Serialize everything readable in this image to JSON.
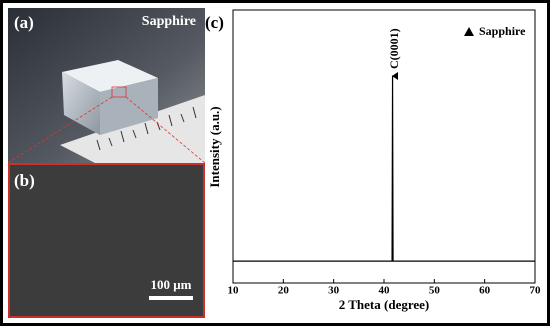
{
  "panels": {
    "a": {
      "label": "(a)",
      "caption": "Sapphire"
    },
    "b": {
      "label": "(b)",
      "scale_bar": "100 μm"
    }
  },
  "chart_data": {
    "type": "line",
    "panel_label": "(c)",
    "xlabel": "2 Theta (degree)",
    "ylabel": "Intensity (a.u.)",
    "legend": "Sapphire",
    "annotation": "C(0001)",
    "x": [
      10,
      41.5,
      41.6,
      41.7,
      41.8,
      41.9,
      70
    ],
    "values": [
      8,
      8,
      8,
      76,
      8,
      8,
      8
    ],
    "color": "#000000",
    "xlim": [
      10,
      70
    ],
    "xticks": [
      10,
      20,
      30,
      40,
      50,
      60,
      70
    ],
    "ylim": [
      0,
      100
    ]
  }
}
